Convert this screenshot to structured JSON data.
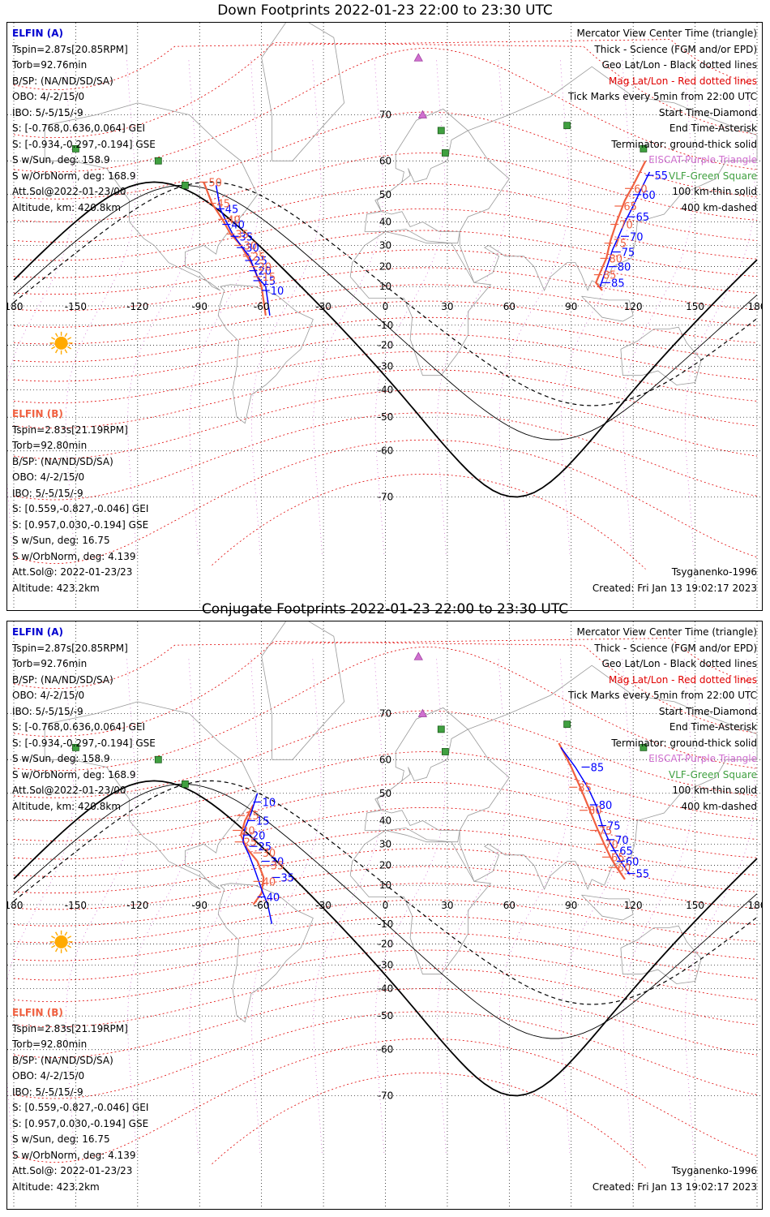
{
  "panels": [
    {
      "id": "down",
      "title": "Down Footprints 2022-01-23 22:00 to 23:30 UTC",
      "elfin_a": {
        "header": "ELFIN (A)",
        "lines": [
          "Tspin=2.87s[20.85RPM]",
          "Torb=92.76min",
          "B/SP: (NA/ND/SD/SA)",
          "OBO: 4/-2/15/0",
          "IBO: 5/-5/15/-9",
          "S: [-0.768,0.636,0.064] GEI",
          "S: [-0.934,-0.297,-0.194] GSE",
          "S w/Sun, deg: 158.9",
          "S w/OrbNorm, deg: 168.9",
          "Att.Sol@2022-01-23/00",
          "Altitude, km: 420.8km"
        ]
      },
      "elfin_b": {
        "header": "ELFIN (B)",
        "lines": [
          "Tspin=2.83s[21.19RPM]",
          "Torb=92.80min",
          "B/SP: (NA/ND/SD/SA)",
          "OBO: 4/-2/15/0",
          "IBO: 5/-5/15/-9",
          "S: [0.559,-0.827,-0.046] GEI",
          "S: [0.957,0.030,-0.194] GSE",
          "S w/Sun, deg: 16.75",
          "S w/OrbNorm, deg: 4.139",
          "Att.Sol@: 2022-01-23/23",
          "Altitude: 423.2km"
        ]
      },
      "model": "Tsyganenko-1996",
      "created": "Created: Fri Jan 13 19:02:17 2023",
      "a_track": [
        [
          -82,
          53
        ],
        [
          -80,
          45
        ],
        [
          -77,
          40
        ],
        [
          -74,
          35
        ],
        [
          -70,
          30
        ],
        [
          -66,
          25
        ],
        [
          -64,
          20
        ],
        [
          -62,
          15
        ],
        [
          -58,
          10
        ],
        [
          -56,
          -5
        ]
      ],
      "a_labels": [
        [
          45,
          -80,
          45
        ],
        [
          40,
          -77,
          39
        ],
        [
          35,
          -73,
          34
        ],
        [
          30,
          -70,
          29
        ],
        [
          25,
          -66,
          23
        ],
        [
          20,
          -64,
          18
        ],
        [
          15,
          -62,
          13
        ],
        [
          10,
          -58,
          8
        ]
      ],
      "b_track": [
        [
          -88,
          54
        ],
        [
          -84,
          47
        ],
        [
          -79,
          41
        ],
        [
          -75,
          35
        ],
        [
          -70,
          30
        ],
        [
          -67,
          25
        ],
        [
          -64,
          20
        ],
        [
          -62,
          15
        ],
        [
          -60,
          10
        ],
        [
          -58,
          -5
        ]
      ],
      "b_labels": [
        [
          50,
          -88,
          54
        ],
        [
          45,
          -84,
          47
        ],
        [
          40,
          -79,
          41
        ],
        [
          35,
          -75,
          35
        ],
        [
          30,
          -71,
          30
        ],
        [
          25,
          -67,
          25
        ],
        [
          20,
          -64,
          20
        ],
        [
          15,
          -62,
          15
        ]
      ],
      "a2_track": [
        [
          128,
          57
        ],
        [
          124,
          52
        ],
        [
          120,
          46
        ],
        [
          116,
          40
        ],
        [
          113,
          34
        ],
        [
          110,
          28
        ],
        [
          108,
          22
        ],
        [
          106,
          16
        ],
        [
          104,
          10
        ]
      ],
      "a2_labels": [
        [
          55,
          128,
          56
        ],
        [
          60,
          122,
          50
        ],
        [
          65,
          119,
          42
        ],
        [
          70,
          116,
          34
        ],
        [
          75,
          112,
          27
        ],
        [
          80,
          110,
          20
        ],
        [
          85,
          107,
          12
        ]
      ],
      "b2_track": [
        [
          126,
          60
        ],
        [
          120,
          53
        ],
        [
          116,
          48
        ],
        [
          112,
          40
        ],
        [
          109,
          32
        ],
        [
          107,
          24
        ],
        [
          104,
          17
        ],
        [
          102,
          12
        ],
        [
          105,
          8
        ]
      ],
      "b2_labels": [
        [
          60,
          118,
          52
        ],
        [
          65,
          113,
          46
        ],
        [
          70,
          111,
          39
        ],
        [
          75,
          108,
          31
        ],
        [
          80,
          106,
          24
        ],
        [
          85,
          103,
          16
        ]
      ]
    },
    {
      "id": "conjugate",
      "title": "Conjugate Footprints 2022-01-23 22:00 to 23:30 UTC",
      "elfin_a": {
        "header": "ELFIN (A)",
        "lines": [
          "Tspin=2.87s[20.85RPM]",
          "Torb=92.76min",
          "B/SP: (NA/ND/SD/SA)",
          "OBO: 4/-2/15/0",
          "IBO: 5/-5/15/-9",
          "S: [-0.768,0.636,0.064] GEI",
          "S: [-0.934,-0.297,-0.194] GSE",
          "S w/Sun, deg: 158.9",
          "S w/OrbNorm, deg: 168.9",
          "Att.Sol@2022-01-23/00",
          "Altitude, km: 420.8km"
        ]
      },
      "elfin_b": {
        "header": "ELFIN (B)",
        "lines": [
          "Tspin=2.83s[21.19RPM]",
          "Torb=92.80min",
          "B/SP: (NA/ND/SD/SA)",
          "OBO: 4/-2/15/0",
          "IBO: 5/-5/15/-9",
          "S: [0.559,-0.827,-0.046] GEI",
          "S: [0.957,0.030,-0.194] GSE",
          "S w/Sun, deg: 16.75",
          "S w/OrbNorm, deg: 4.139",
          "Att.Sol@: 2022-01-23/23",
          "Altitude: 423.2km"
        ]
      },
      "model": "Tsyganenko-1996",
      "created": "Created: Fri Jan 13 19:02:17 2023",
      "a_track": [
        [
          -62,
          50
        ],
        [
          -65,
          43
        ],
        [
          -68,
          37
        ],
        [
          -69,
          31
        ],
        [
          -66,
          25
        ],
        [
          -63,
          17
        ],
        [
          -60,
          8
        ],
        [
          -57,
          0
        ],
        [
          -55,
          -10
        ]
      ],
      "a_labels": [
        [
          10,
          -62,
          47
        ],
        [
          15,
          -65,
          40
        ],
        [
          20,
          -67,
          34
        ],
        [
          25,
          -64,
          29
        ],
        [
          30,
          -58,
          22
        ],
        [
          35,
          -53,
          14
        ],
        [
          40,
          -60,
          4
        ]
      ],
      "b_track": [
        [
          -64,
          46
        ],
        [
          -68,
          40
        ],
        [
          -70,
          34
        ],
        [
          -67,
          28
        ],
        [
          -62,
          22
        ],
        [
          -59,
          14
        ],
        [
          -60,
          6
        ],
        [
          -64,
          0
        ]
      ],
      "b_labels": [
        [
          15,
          -70,
          42
        ],
        [
          20,
          -72,
          36
        ],
        [
          25,
          -71,
          31
        ],
        [
          30,
          -62,
          26
        ],
        [
          35,
          -58,
          20
        ],
        [
          40,
          -62,
          12
        ]
      ],
      "a2_track": [
        [
          85,
          63
        ],
        [
          92,
          58
        ],
        [
          98,
          52
        ],
        [
          102,
          46
        ],
        [
          105,
          38
        ],
        [
          108,
          32
        ],
        [
          111,
          27
        ],
        [
          114,
          22
        ],
        [
          118,
          16
        ]
      ],
      "a2_labels": [
        [
          85,
          97,
          58
        ],
        [
          80,
          101,
          46
        ],
        [
          75,
          105,
          38
        ],
        [
          70,
          109,
          32
        ],
        [
          65,
          111,
          27
        ],
        [
          60,
          114,
          22
        ],
        [
          55,
          119,
          16
        ]
      ],
      "b2_track": [
        [
          84,
          64
        ],
        [
          90,
          58
        ],
        [
          95,
          51
        ],
        [
          99,
          44
        ],
        [
          103,
          36
        ],
        [
          106,
          30
        ],
        [
          109,
          24
        ],
        [
          112,
          19
        ],
        [
          116,
          13
        ]
      ],
      "b2_labels": [
        [
          85,
          91,
          52
        ],
        [
          80,
          96,
          44
        ],
        [
          75,
          101,
          36
        ],
        [
          70,
          104,
          30
        ],
        [
          65,
          107,
          24
        ],
        [
          60,
          110,
          19
        ]
      ]
    }
  ],
  "legend": {
    "line1": "Mercator View Center Time (triangle)",
    "line2": "Thick - Science (FGM and/or EPD)",
    "line3": "Geo Lat/Lon - Black dotted lines",
    "line4": "Mag Lat/Lon - Red dotted lines",
    "line5": "Tick Marks every 5min from 22:00 UTC",
    "line6": "Start Time-Diamond",
    "line7": "End Time-Asterisk",
    "line8": "Terminator: ground-thick solid",
    "line9": "EISCAT-Purple Triangle",
    "line10": "VLF-Green Square",
    "line11": "100 km-thin solid",
    "line12": "400 km-dashed"
  },
  "axis": {
    "lon_ticks": [
      -180,
      -150,
      -120,
      -90,
      -60,
      -30,
      0,
      30,
      60,
      90,
      120,
      150,
      180
    ],
    "lon_labels": [
      "180",
      "-150",
      "-120",
      "-90",
      "-60",
      "-30",
      "0",
      "30",
      "60",
      "90",
      "120",
      "150",
      "180"
    ],
    "lat_ticks": [
      70,
      60,
      50,
      40,
      30,
      20,
      10,
      -10,
      -20,
      -30,
      -40,
      -50,
      -60,
      -70
    ],
    "lat_labels": [
      "70",
      "60",
      "50",
      "40",
      "30",
      "20",
      "10",
      "-10",
      "-20",
      "-30",
      "-40",
      "-50",
      "-60",
      "-70"
    ]
  },
  "colors": {
    "elfin_a": "#0000ff",
    "elfin_b": "#f06040",
    "geo_grid": "#000000",
    "mag_grid": "#e00000",
    "eiscat": "#d070d0",
    "vlf": "#40a040",
    "sun": "#ffaa00"
  }
}
